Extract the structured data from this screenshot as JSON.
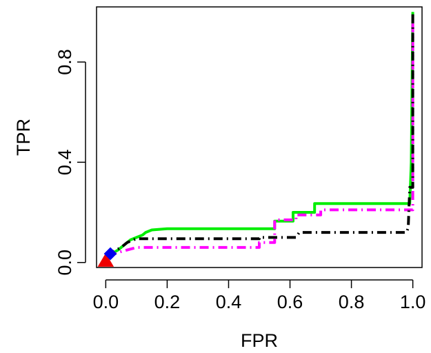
{
  "chart_data": {
    "type": "line",
    "title": "",
    "xlabel": "FPR",
    "ylabel": "TPR",
    "xlim": [
      -0.03,
      1.03
    ],
    "ylim": [
      -0.02,
      1.02
    ],
    "xticks": [
      0.0,
      0.2,
      0.4,
      0.6,
      0.8,
      1.0
    ],
    "xtick_labels": [
      "0.0",
      "0.2",
      "0.4",
      "0.6",
      "0.8",
      "1.0"
    ],
    "yticks": [
      0.0,
      0.4,
      0.8
    ],
    "ytick_labels": [
      "0.0",
      "0.4",
      "0.8"
    ],
    "grid": false,
    "series": [
      {
        "color": "#00ee00",
        "line_style": "solid",
        "points": [
          [
            0.0,
            0.0
          ],
          [
            0.01,
            0.02
          ],
          [
            0.02,
            0.035
          ],
          [
            0.04,
            0.05
          ],
          [
            0.06,
            0.07
          ],
          [
            0.08,
            0.09
          ],
          [
            0.1,
            0.1
          ],
          [
            0.12,
            0.11
          ],
          [
            0.13,
            0.12
          ],
          [
            0.15,
            0.13
          ],
          [
            0.2,
            0.135
          ],
          [
            0.55,
            0.135
          ],
          [
            0.55,
            0.165
          ],
          [
            0.61,
            0.165
          ],
          [
            0.61,
            0.2
          ],
          [
            0.68,
            0.2
          ],
          [
            0.68,
            0.235
          ],
          [
            0.99,
            0.235
          ],
          [
            0.995,
            0.4
          ],
          [
            1.0,
            1.0
          ]
        ]
      },
      {
        "color": "#ff00ff",
        "line_style": "dot-dash",
        "points": [
          [
            0.0,
            0.0
          ],
          [
            0.02,
            0.03
          ],
          [
            0.04,
            0.04
          ],
          [
            0.07,
            0.05
          ],
          [
            0.1,
            0.06
          ],
          [
            0.5,
            0.06
          ],
          [
            0.5,
            0.08
          ],
          [
            0.55,
            0.08
          ],
          [
            0.55,
            0.17
          ],
          [
            0.62,
            0.17
          ],
          [
            0.62,
            0.19
          ],
          [
            0.7,
            0.19
          ],
          [
            0.7,
            0.21
          ],
          [
            1.0,
            0.21
          ],
          [
            1.0,
            0.97
          ]
        ]
      },
      {
        "color": "#000000",
        "line_style": "dot-dash",
        "points": [
          [
            0.0,
            0.0
          ],
          [
            0.02,
            0.04
          ],
          [
            0.05,
            0.06
          ],
          [
            0.07,
            0.08
          ],
          [
            0.1,
            0.095
          ],
          [
            0.5,
            0.095
          ],
          [
            0.5,
            0.1
          ],
          [
            0.62,
            0.1
          ],
          [
            0.63,
            0.12
          ],
          [
            0.98,
            0.12
          ],
          [
            0.985,
            0.14
          ],
          [
            0.99,
            0.3
          ],
          [
            1.0,
            0.3
          ],
          [
            1.0,
            1.0
          ]
        ]
      }
    ],
    "markers": [
      {
        "shape": "triangle",
        "color": "#ee0000",
        "x": 0.0,
        "y": 0.005
      },
      {
        "shape": "diamond",
        "color": "#0000ee",
        "x": 0.015,
        "y": 0.035
      }
    ]
  }
}
